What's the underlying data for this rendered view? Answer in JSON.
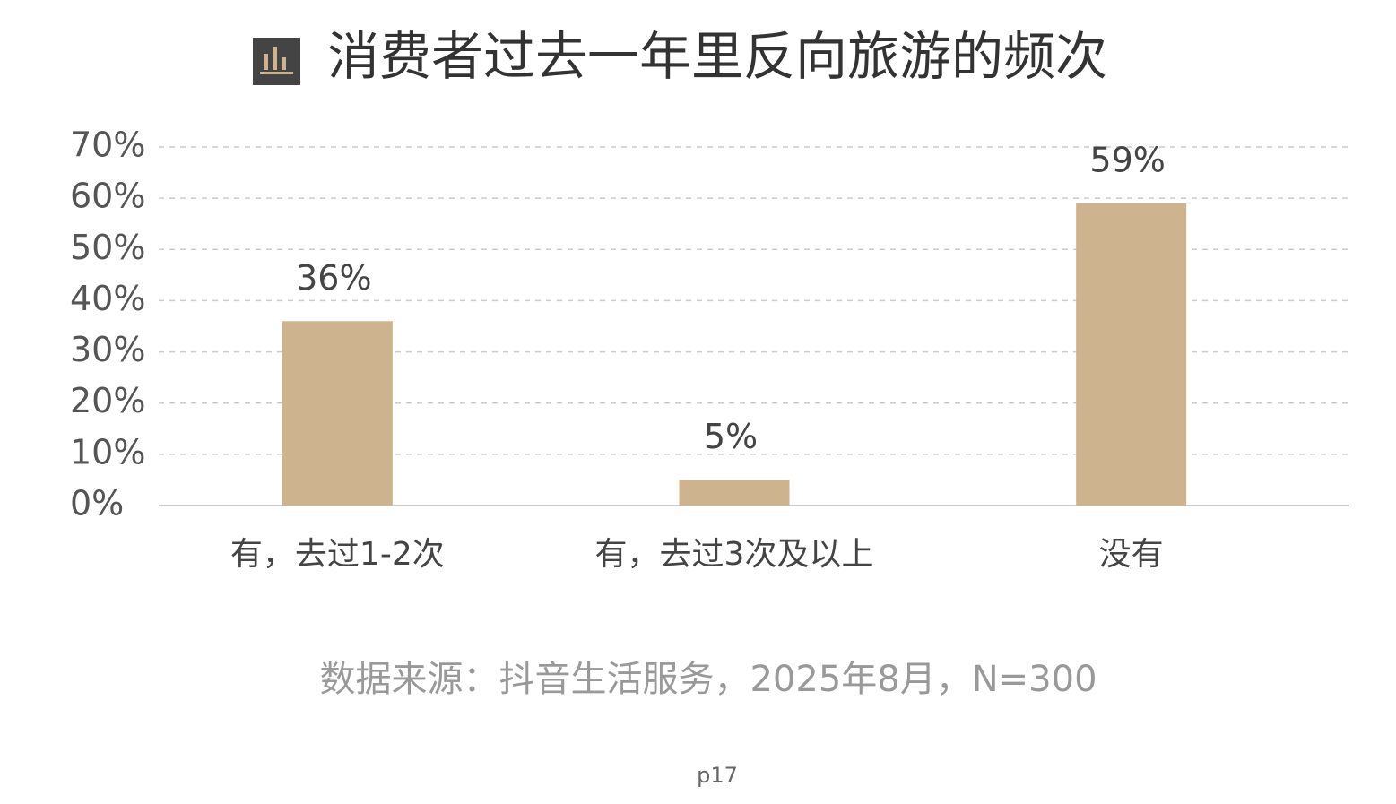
{
  "chart_data": {
    "type": "bar",
    "title": "消费者过去一年里反向旅游的频次",
    "categories": [
      "有，去过1-2次",
      "有，去过3次及以上",
      "没有"
    ],
    "values": [
      36,
      5,
      59
    ],
    "value_labels": [
      "36%",
      "5%",
      "59%"
    ],
    "color": "#cdb48e",
    "ylim": [
      0,
      70
    ],
    "yticks": [
      {
        "value": 0,
        "label": "0%"
      },
      {
        "value": 10,
        "label": "10%"
      },
      {
        "value": 20,
        "label": "20%"
      },
      {
        "value": 30,
        "label": "30%"
      },
      {
        "value": 40,
        "label": "40%"
      },
      {
        "value": 50,
        "label": "50%"
      },
      {
        "value": 60,
        "label": "60%"
      },
      {
        "value": 70,
        "label": "70%"
      }
    ],
    "grid": true,
    "source": "数据来源：抖音生活服务，2025年8月，N=300",
    "page": "p17"
  }
}
